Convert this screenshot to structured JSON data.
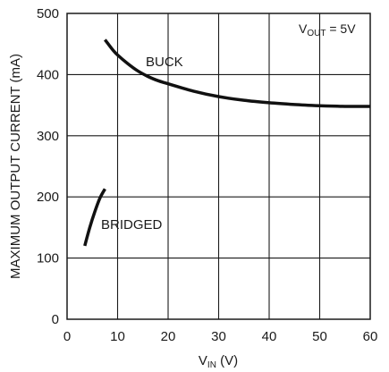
{
  "chart_data": {
    "type": "line",
    "xlabel_main": "V",
    "xlabel_sub": "IN",
    "xlabel_unit": " (V)",
    "ylabel": "MAXIMUM OUTPUT CURRENT (mA)",
    "xlim": [
      0,
      60
    ],
    "ylim": [
      0,
      500
    ],
    "x_ticks": [
      0,
      10,
      20,
      30,
      40,
      50,
      60
    ],
    "y_ticks": [
      0,
      100,
      200,
      300,
      400,
      500
    ],
    "grid": true,
    "annotation": {
      "main": "V",
      "sub": "OUT",
      "rest": " = 5V",
      "placement": "top-right"
    },
    "series": [
      {
        "name": "BUCK",
        "x": [
          7.5,
          9,
          10,
          12,
          14,
          16,
          18,
          20,
          25,
          30,
          35,
          40,
          45,
          50,
          55,
          60
        ],
        "y": [
          457,
          441,
          432,
          418,
          406,
          397,
          390,
          385,
          373,
          364,
          358,
          354,
          351,
          349,
          348,
          348
        ]
      },
      {
        "name": "BRIDGED",
        "x": [
          3.5,
          4.5,
          5.5,
          6.5,
          7.5
        ],
        "y": [
          120,
          150,
          176,
          198,
          213
        ]
      }
    ]
  }
}
